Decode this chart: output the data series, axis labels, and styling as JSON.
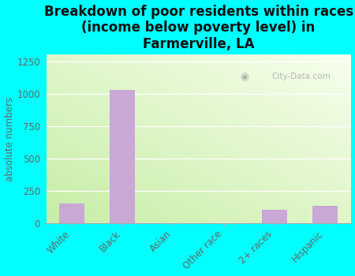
{
  "categories": [
    "White",
    "Black",
    "Asian",
    "Other race",
    "2+ races",
    "Hispanic"
  ],
  "values": [
    150,
    1030,
    0,
    0,
    100,
    130
  ],
  "bar_color": "#c9a8d4",
  "title": "Breakdown of poor residents within races\n(income below poverty level) in\nFarmerville, LA",
  "ylabel": "absolute numbers",
  "ylim": [
    0,
    1300
  ],
  "yticks": [
    0,
    250,
    500,
    750,
    1000,
    1250
  ],
  "background_color": "#00ffff",
  "watermark": "City-Data.com",
  "title_fontsize": 12,
  "label_fontsize": 8.5,
  "tick_fontsize": 8.5
}
